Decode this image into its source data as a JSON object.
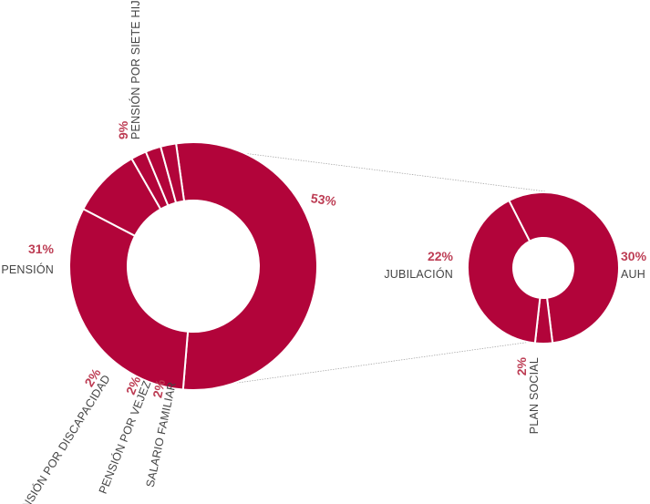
{
  "colors": {
    "slice": "#b2043a",
    "separator": "#ffffff",
    "percent_text": "#bd3d54",
    "label_text": "#444444",
    "connector": "#9a9a9a"
  },
  "chart_data": [
    {
      "type": "pie",
      "style": "donut",
      "categories": [
        "53%",
        "PENSIÓN",
        "PENSIÓN POR SIETE HIJOS",
        "PENSIÓN POR DISCAPACIDAD",
        "PENSIÓN POR VEJEZ",
        "SALARIO FAMILIAR"
      ],
      "values": [
        53,
        31,
        9,
        2,
        2,
        2
      ],
      "percent_labels": [
        "53%",
        "31%",
        "9%",
        "2%",
        "2%",
        "2%"
      ],
      "category_labels": [
        "",
        "PENSIÓN",
        "PENSIÓN POR SIETE HIJOS",
        "PENSIÓN POR DISCAPACIDAD",
        "PENSIÓN POR VEJEZ",
        "SALARIO FAMILIAR"
      ],
      "exploded_slice": 0
    },
    {
      "type": "pie",
      "style": "donut",
      "categories": [
        "AUH",
        "PLAN SOCIAL",
        "JUBILACIÓN"
      ],
      "values": [
        30,
        2,
        22
      ],
      "percent_labels": [
        "30%",
        "2%",
        "22%"
      ],
      "category_labels": [
        "AUH",
        "PLAN SOCIAL",
        "JUBILACIÓN"
      ]
    }
  ]
}
